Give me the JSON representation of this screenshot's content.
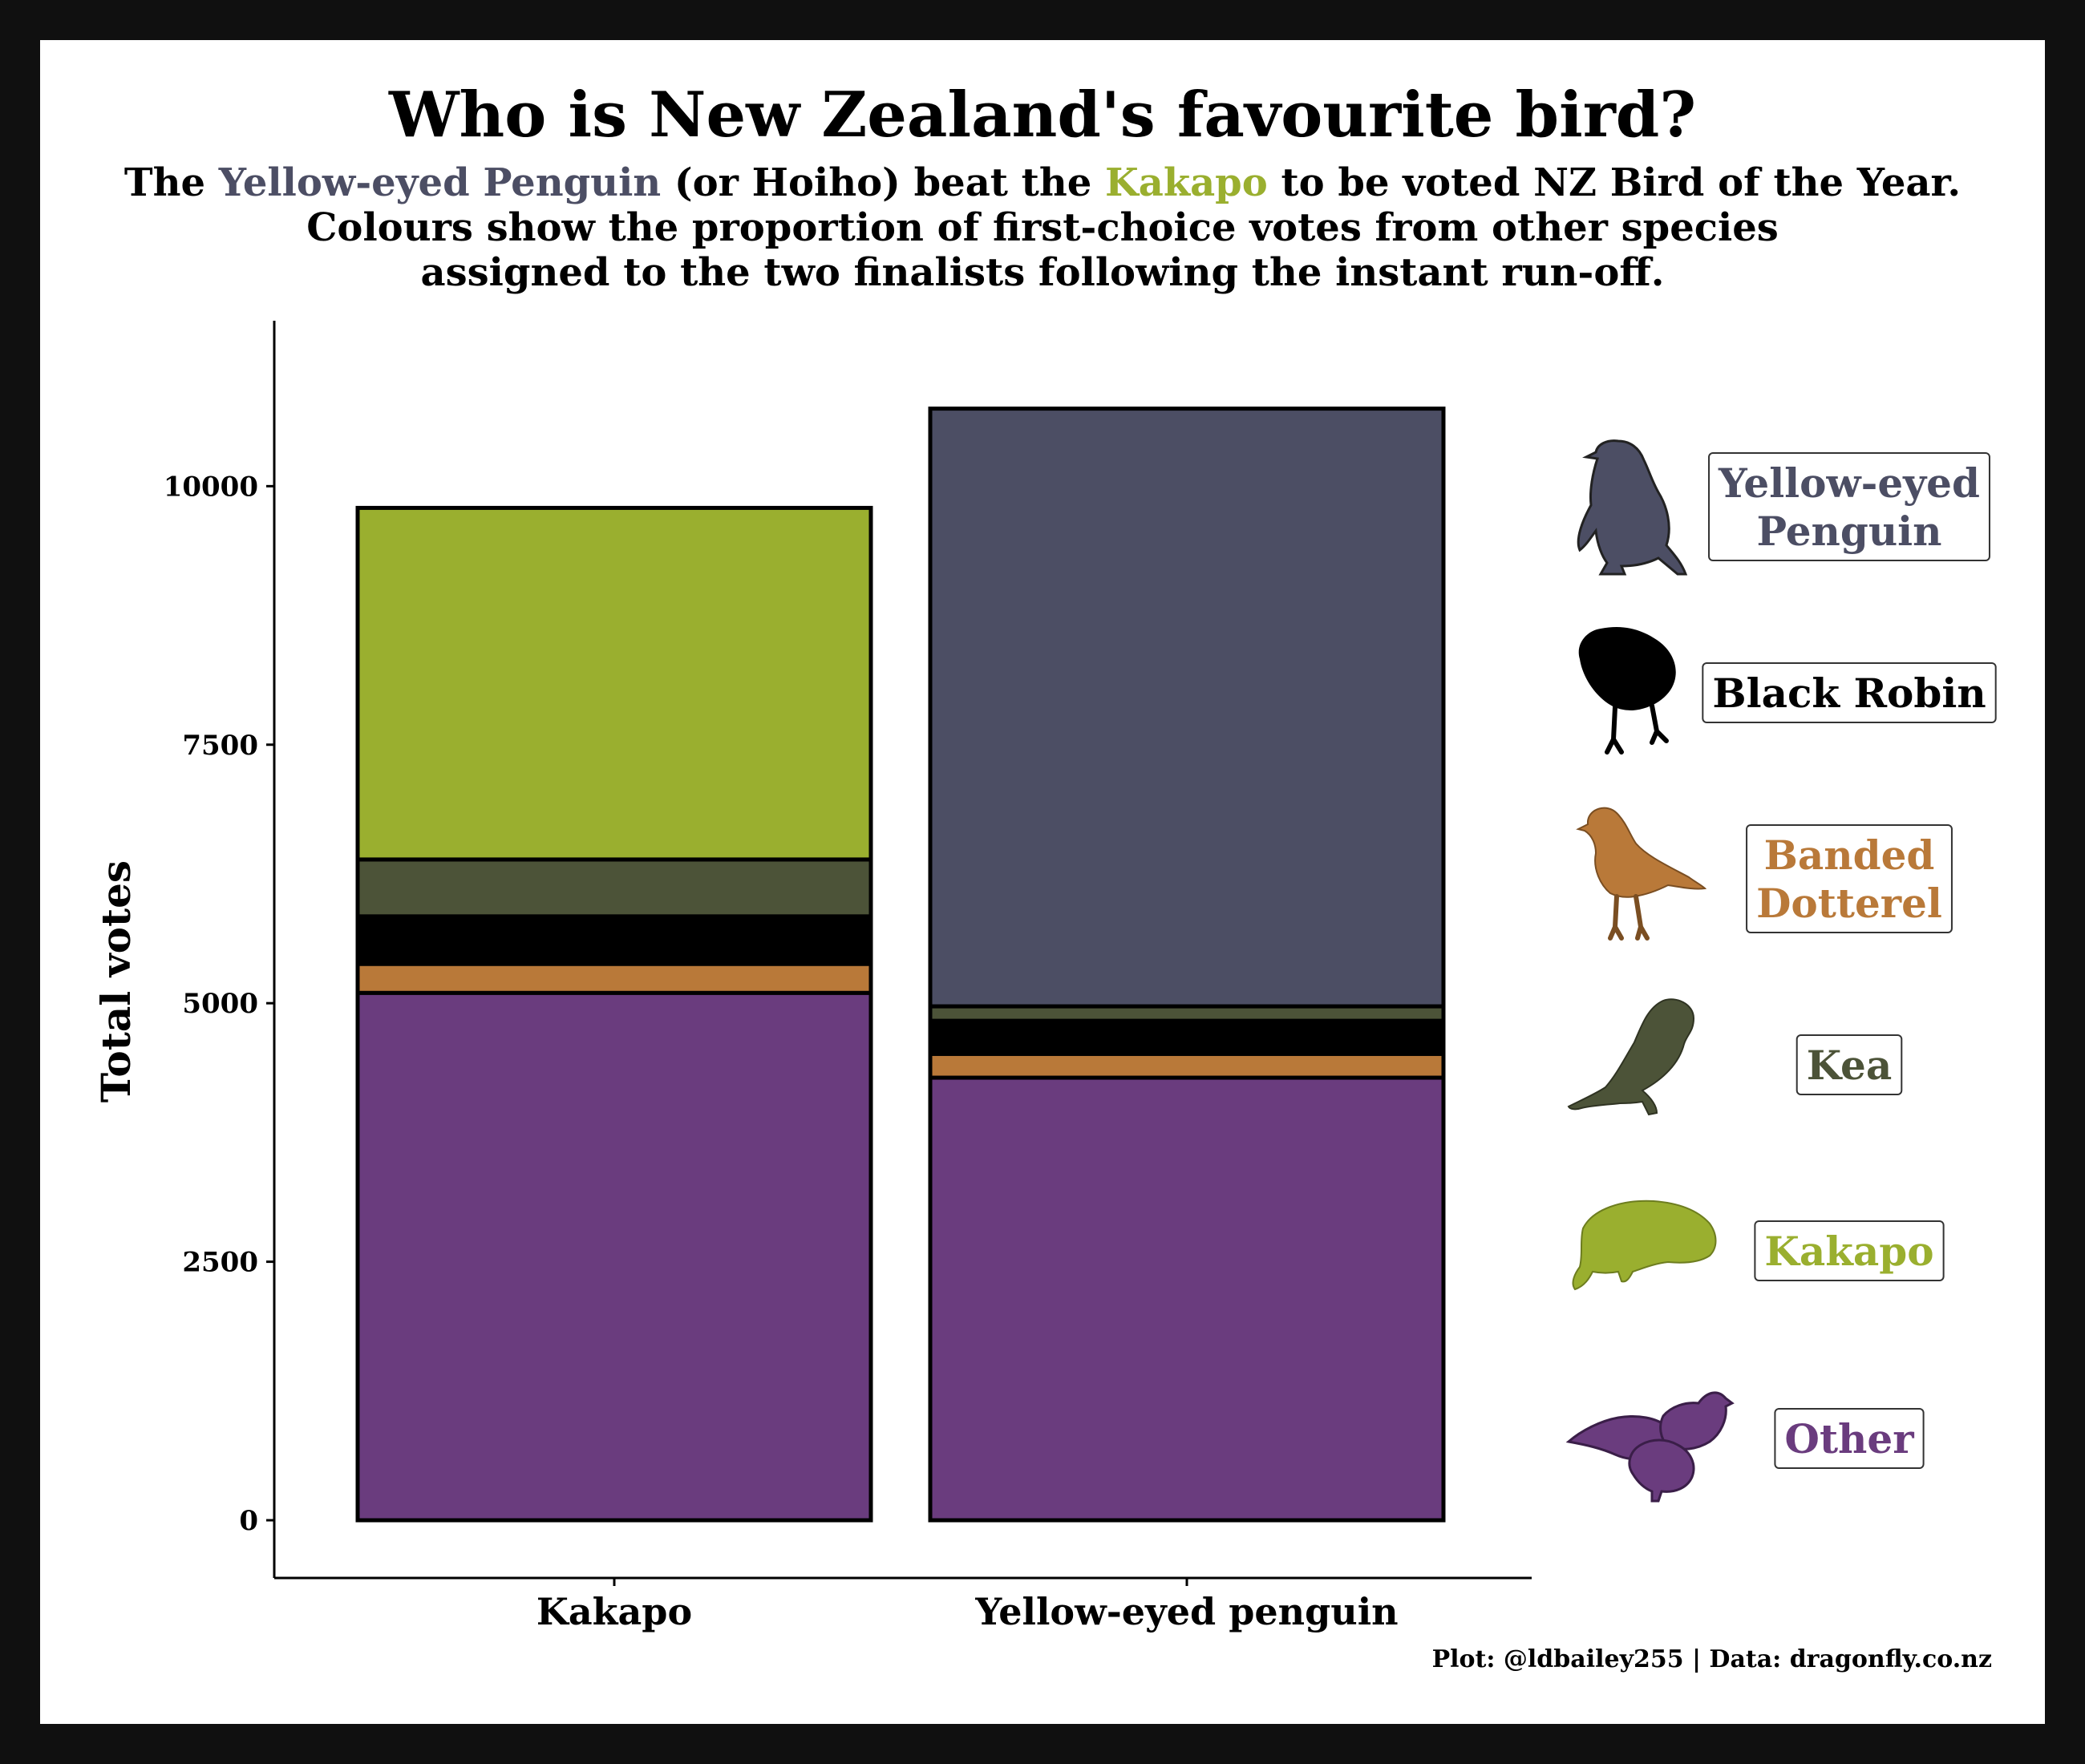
{
  "title": "Who is New Zealand's favourite bird?",
  "subtitle": {
    "line1": {
      "part1": "The",
      "penguin": "Yellow-eyed Penguin",
      "part2": "(or Hoiho) beat the",
      "kakapo": "Kakapo",
      "part3": "to be voted NZ Bird of the Year."
    },
    "line2": "Colours show the proportion of first-choice votes from other species",
    "line3": "assigned to the two finalists following the instant run-off."
  },
  "caption": "Plot: @ldbailey255 | Data: dragonfly.co.nz",
  "colors": {
    "Yellow-eyed Penguin": "#4c4e64",
    "Black Robin": "#000000",
    "Banded Dotterel": "#b97939",
    "Kea": "#4c5338",
    "Kakapo": "#9aaf2f",
    "Other": "#6a3c7e"
  },
  "chart_data": {
    "type": "bar",
    "stacked": true,
    "categories": [
      "Kakapo",
      "Yellow-eyed penguin"
    ],
    "ylabel": "Total votes",
    "xlabel": "",
    "ylim": [
      0,
      11600
    ],
    "yticks": [
      0,
      2500,
      5000,
      7500,
      10000
    ],
    "series": [
      {
        "name": "Other",
        "values": [
          5100,
          4280
        ]
      },
      {
        "name": "Banded Dotterel",
        "values": [
          280,
          230
        ]
      },
      {
        "name": "Black Robin",
        "values": [
          460,
          320
        ]
      },
      {
        "name": "Kea",
        "values": [
          550,
          140
        ]
      },
      {
        "name": "Kakapo",
        "values": [
          3400,
          0
        ]
      },
      {
        "name": "Yellow-eyed Penguin",
        "values": [
          0,
          5780
        ]
      }
    ],
    "legend": {
      "position": "right",
      "entries": [
        {
          "series": "Yellow-eyed Penguin",
          "lines": [
            "Yellow-eyed",
            "Penguin"
          ],
          "icon": "penguin-icon"
        },
        {
          "series": "Black Robin",
          "lines": [
            "Black Robin"
          ],
          "icon": "robin-icon"
        },
        {
          "series": "Banded Dotterel",
          "lines": [
            "Banded",
            "Dotterel"
          ],
          "icon": "dotterel-icon"
        },
        {
          "series": "Kea",
          "lines": [
            "Kea"
          ],
          "icon": "kea-icon"
        },
        {
          "series": "Kakapo",
          "lines": [
            "Kakapo"
          ],
          "icon": "kakapo-icon"
        },
        {
          "series": "Other",
          "lines": [
            "Other"
          ],
          "icon": "other-birds-icon"
        }
      ]
    },
    "grid": false
  }
}
